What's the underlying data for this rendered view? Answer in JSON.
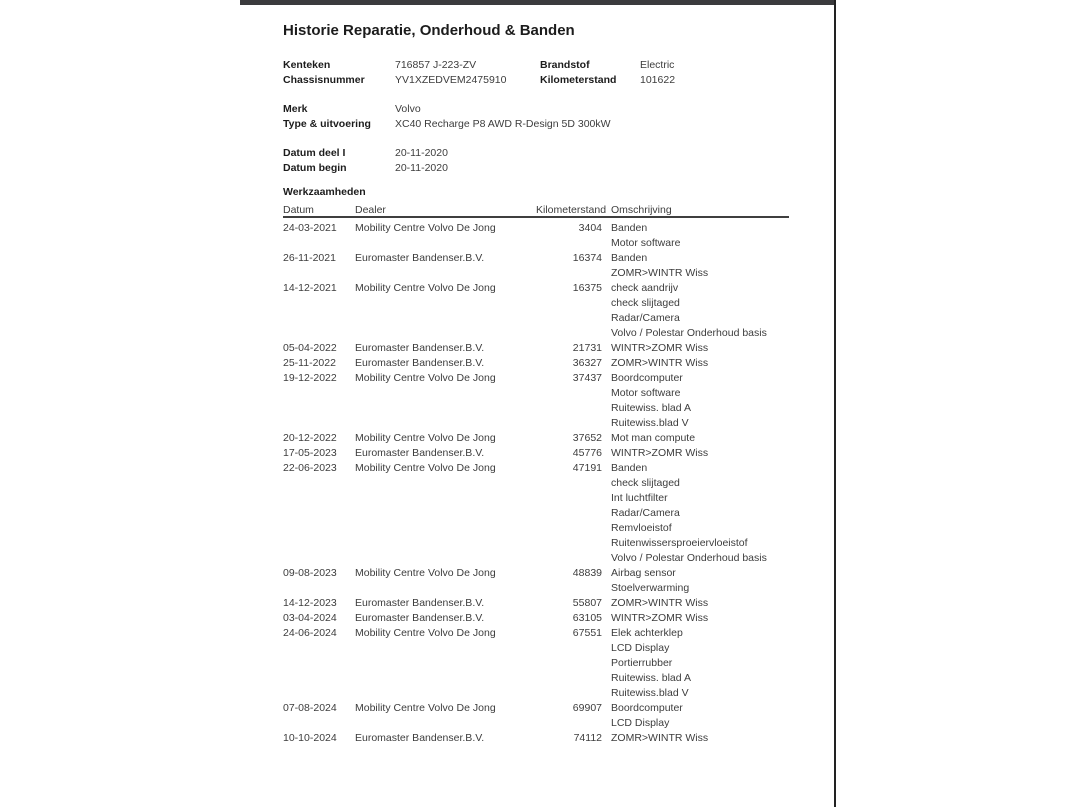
{
  "page": {
    "title": "Historie Reparatie, Onderhoud & Banden"
  },
  "info": {
    "kenteken_label": "Kenteken",
    "kenteken": "716857 J-223-ZV",
    "brandstof_label": "Brandstof",
    "brandstof": "Electric",
    "chassisnummer_label": "Chassisnummer",
    "chassisnummer": "YV1XZEDVEM2475910",
    "kilometerstand_label": "Kilometerstand",
    "kilometerstand": "101622",
    "merk_label": "Merk",
    "merk": "Volvo",
    "type_label": "Type & uitvoering",
    "type": "XC40 Recharge P8 AWD R-Design 5D 300kW",
    "datum_deel_label": "Datum deel I",
    "datum_deel": "20-11-2020",
    "datum_begin_label": "Datum begin",
    "datum_begin": "20-11-2020"
  },
  "werkzaamheden": {
    "section_title": "Werkzaamheden",
    "columns": [
      "Datum",
      "Dealer",
      "Kilometerstand",
      "Omschrijving"
    ],
    "rows": [
      {
        "datum": "24-03-2021",
        "dealer": "Mobility Centre Volvo De Jong",
        "kilometerstand": "3404",
        "omschrijving": [
          "Banden",
          "Motor software"
        ]
      },
      {
        "datum": "26-11-2021",
        "dealer": "Euromaster Bandenser.B.V.",
        "kilometerstand": "16374",
        "omschrijving": [
          "Banden",
          "ZOMR>WINTR Wiss"
        ]
      },
      {
        "datum": "14-12-2021",
        "dealer": "Mobility Centre Volvo De Jong",
        "kilometerstand": "16375",
        "omschrijving": [
          "check aandrijv",
          "check slijtaged",
          "Radar/Camera",
          "Volvo / Polestar Onderhoud basis"
        ]
      },
      {
        "datum": "05-04-2022",
        "dealer": "Euromaster Bandenser.B.V.",
        "kilometerstand": "21731",
        "omschrijving": [
          "WINTR>ZOMR Wiss"
        ]
      },
      {
        "datum": "25-11-2022",
        "dealer": "Euromaster Bandenser.B.V.",
        "kilometerstand": "36327",
        "omschrijving": [
          "ZOMR>WINTR Wiss"
        ]
      },
      {
        "datum": "19-12-2022",
        "dealer": "Mobility Centre Volvo De Jong",
        "kilometerstand": "37437",
        "omschrijving": [
          "Boordcomputer",
          "Motor software",
          "Ruitewiss. blad A",
          "Ruitewiss.blad V"
        ]
      },
      {
        "datum": "20-12-2022",
        "dealer": "Mobility Centre Volvo De Jong",
        "kilometerstand": "37652",
        "omschrijving": [
          "Mot man compute"
        ]
      },
      {
        "datum": "17-05-2023",
        "dealer": "Euromaster Bandenser.B.V.",
        "kilometerstand": "45776",
        "omschrijving": [
          "WINTR>ZOMR Wiss"
        ]
      },
      {
        "datum": "22-06-2023",
        "dealer": "Mobility Centre Volvo De Jong",
        "kilometerstand": "47191",
        "omschrijving": [
          "Banden",
          "check slijtaged",
          "Int luchtfilter",
          "Radar/Camera",
          "Remvloeistof",
          "Ruitenwissersproeiervloeistof",
          "Volvo / Polestar Onderhoud basis"
        ]
      },
      {
        "datum": "09-08-2023",
        "dealer": "Mobility Centre Volvo De Jong",
        "kilometerstand": "48839",
        "omschrijving": [
          "Airbag sensor",
          "Stoelverwarming"
        ]
      },
      {
        "datum": "14-12-2023",
        "dealer": "Euromaster Bandenser.B.V.",
        "kilometerstand": "55807",
        "omschrijving": [
          "ZOMR>WINTR Wiss"
        ]
      },
      {
        "datum": "03-04-2024",
        "dealer": "Euromaster Bandenser.B.V.",
        "kilometerstand": "63105",
        "omschrijving": [
          "WINTR>ZOMR Wiss"
        ]
      },
      {
        "datum": "24-06-2024",
        "dealer": "Mobility Centre Volvo De Jong",
        "kilometerstand": "67551",
        "omschrijving": [
          "Elek achterklep",
          "LCD Display",
          "Portierrubber",
          "Ruitewiss. blad A",
          "Ruitewiss.blad V"
        ]
      },
      {
        "datum": "07-08-2024",
        "dealer": "Mobility Centre Volvo De Jong",
        "kilometerstand": "69907",
        "omschrijving": [
          "Boordcomputer",
          "LCD Display"
        ]
      },
      {
        "datum": "10-10-2024",
        "dealer": "Euromaster Bandenser.B.V.",
        "kilometerstand": "74112",
        "omschrijving": [
          "ZOMR>WINTR Wiss"
        ]
      }
    ]
  },
  "colors": {
    "top_bar": "#3b3b3d",
    "right_border": "#222222",
    "text": "#3d3d3d",
    "bold_text": "#1c1c1c"
  }
}
